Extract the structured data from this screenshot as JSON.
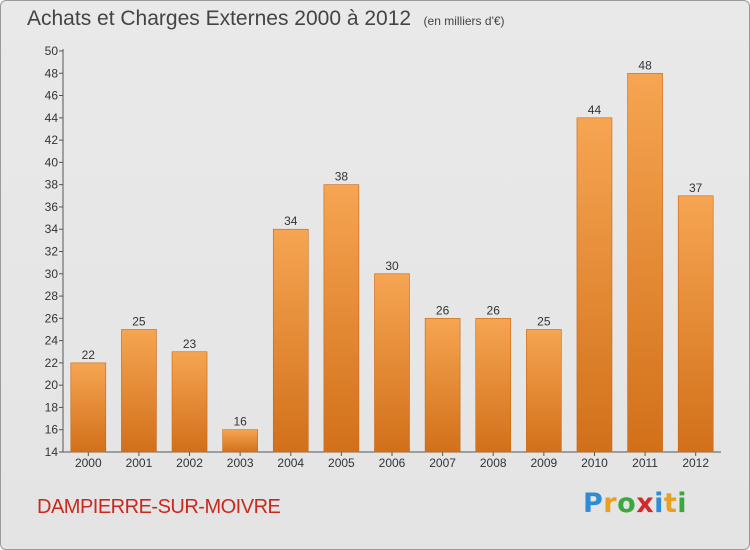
{
  "header": {
    "title": "Achats et Charges Externes 2000 à 2012",
    "unit": "(en milliers d'€)"
  },
  "commune": "DAMPIERRE-SUR-MOIVRE",
  "logo": {
    "letters": [
      "P",
      "r",
      "o",
      "x",
      "i",
      "t",
      "i"
    ],
    "colors": [
      "#2e8bd6",
      "#e8a020",
      "#3aa83a",
      "#d4282a",
      "#2e8bd6",
      "#e8a020",
      "#3aa83a"
    ]
  },
  "colors": {
    "bar_top": "#f6a552",
    "bar_bottom": "#d2701a",
    "title": "#444444",
    "commune": "#c8291e"
  },
  "chart_data": {
    "type": "bar",
    "categories": [
      "2000",
      "2001",
      "2002",
      "2003",
      "2004",
      "2005",
      "2006",
      "2007",
      "2008",
      "2009",
      "2010",
      "2011",
      "2012"
    ],
    "values": [
      22,
      25,
      23,
      16,
      34,
      38,
      30,
      26,
      26,
      25,
      44,
      48,
      37
    ],
    "title": "Achats et Charges Externes 2000 à 2012",
    "ylim": [
      14,
      50
    ],
    "yticks": [
      14,
      16,
      18,
      20,
      22,
      24,
      26,
      28,
      30,
      32,
      34,
      36,
      38,
      40,
      42,
      44,
      46,
      48,
      50
    ],
    "grid": false
  }
}
